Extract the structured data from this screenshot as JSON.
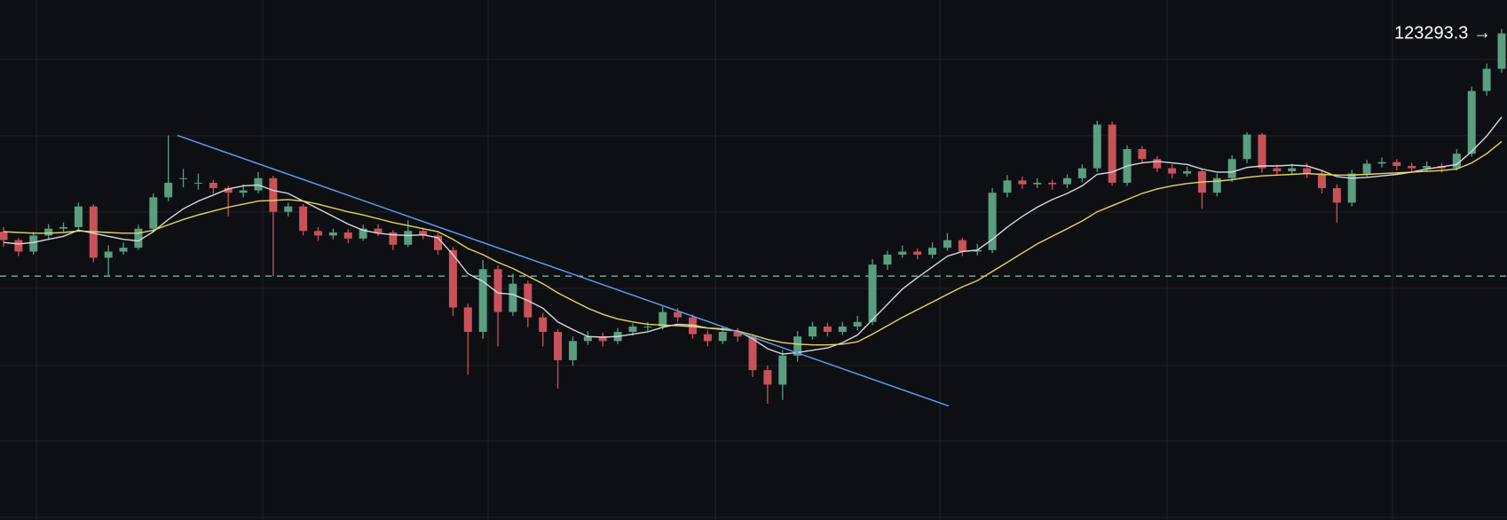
{
  "chart_data": {
    "type": "candlestick",
    "last_price_label": "123293.3 →",
    "up_color": "#5a9e82",
    "down_color": "#c9525a",
    "ylim": [
      116930,
      123730
    ],
    "open": [
      120700,
      120590,
      120440,
      120650,
      120740,
      120760,
      121030,
      120360,
      120440,
      120490,
      120740,
      121150,
      121400,
      121340,
      121340,
      121270,
      121210,
      121240,
      121400,
      120960,
      121030,
      120710,
      120650,
      120690,
      120610,
      120740,
      120690,
      120530,
      120710,
      120650,
      120460,
      119710,
      119390,
      120210,
      119650,
      120020,
      119580,
      119390,
      119020,
      119270,
      119330,
      119270,
      119390,
      119460,
      119460,
      119650,
      119580,
      119360,
      119270,
      119390,
      119330,
      118890,
      118700,
      119080,
      119330,
      119460,
      119390,
      119460,
      119520,
      120270,
      120400,
      120440,
      120400,
      120490,
      120590,
      120440,
      120460,
      121210,
      121370,
      121320,
      121340,
      121320,
      121400,
      121530,
      122100,
      121340,
      121780,
      121650,
      121530,
      121460,
      121490,
      121210,
      121400,
      121650,
      121970,
      121530,
      121490,
      121530,
      121460,
      121270,
      121080,
      121460,
      121590,
      121610,
      121560,
      121530,
      121560,
      121530,
      121720,
      122540,
      122830
    ],
    "high": [
      120760,
      120620,
      120700,
      120800,
      120820,
      121080,
      121060,
      120520,
      120560,
      120790,
      121200,
      121960,
      121520,
      121460,
      121380,
      121300,
      121320,
      121480,
      121430,
      121080,
      121060,
      120760,
      120740,
      120730,
      120790,
      120800,
      120720,
      120850,
      120750,
      120680,
      120500,
      119760,
      120330,
      120260,
      120150,
      120060,
      119640,
      119430,
      119330,
      119400,
      119380,
      119440,
      119500,
      119520,
      119720,
      119700,
      119620,
      119410,
      119450,
      119440,
      119360,
      118950,
      119150,
      119400,
      119520,
      119510,
      119520,
      119600,
      120340,
      120450,
      120520,
      120480,
      120560,
      120680,
      120620,
      120540,
      121270,
      121440,
      121420,
      121400,
      121380,
      121450,
      121580,
      122150,
      122140,
      121830,
      121820,
      121690,
      121580,
      121550,
      121530,
      121460,
      121700,
      122000,
      121990,
      121580,
      121590,
      121600,
      121500,
      121320,
      121510,
      121640,
      121670,
      121650,
      121600,
      121620,
      121600,
      121780,
      122600,
      122900,
      123350
    ],
    "low": [
      120500,
      120380,
      120400,
      120600,
      120700,
      120720,
      120300,
      120120,
      120400,
      120460,
      120700,
      121100,
      121280,
      121250,
      121200,
      120900,
      121150,
      121200,
      120120,
      120900,
      120650,
      120580,
      120600,
      120550,
      120580,
      120640,
      120460,
      120500,
      120600,
      120400,
      119600,
      118830,
      119300,
      119200,
      119600,
      119450,
      119200,
      118650,
      118950,
      119220,
      119200,
      119230,
      119340,
      119400,
      119420,
      119520,
      119300,
      119200,
      119230,
      119260,
      118800,
      118450,
      118500,
      119000,
      119290,
      119330,
      119350,
      119410,
      119480,
      120200,
      120360,
      120340,
      120350,
      120450,
      120380,
      120390,
      120420,
      121150,
      121260,
      121270,
      121250,
      121270,
      121350,
      121480,
      121300,
      121300,
      121600,
      121480,
      121400,
      121420,
      121000,
      121160,
      121350,
      121600,
      121470,
      121430,
      121450,
      121400,
      121200,
      120820,
      121030,
      121420,
      121540,
      121500,
      121470,
      121490,
      121470,
      121500,
      121680,
      122480,
      122780
    ],
    "close": [
      120590,
      120440,
      120650,
      120740,
      120760,
      121030,
      120360,
      120440,
      120490,
      120740,
      121150,
      121340,
      121400,
      121340,
      121270,
      121210,
      121240,
      121400,
      120960,
      121030,
      120710,
      120650,
      120690,
      120610,
      120740,
      120690,
      120530,
      120710,
      120650,
      120460,
      119710,
      119390,
      120210,
      119650,
      120020,
      119580,
      119390,
      119020,
      119270,
      119330,
      119270,
      119390,
      119460,
      119460,
      119650,
      119580,
      119360,
      119270,
      119390,
      119330,
      118890,
      118700,
      119080,
      119330,
      119460,
      119390,
      119460,
      119520,
      120270,
      120400,
      120440,
      120400,
      120490,
      120590,
      120440,
      120460,
      121210,
      121370,
      121320,
      121340,
      121320,
      121400,
      121530,
      122100,
      121340,
      121780,
      121650,
      121530,
      121460,
      121490,
      121210,
      121400,
      121650,
      121970,
      121530,
      121490,
      121530,
      121460,
      121270,
      121080,
      121460,
      121590,
      121610,
      121560,
      121530,
      121560,
      121530,
      121720,
      122540,
      122830,
      123293.3
    ],
    "overlays": [
      {
        "color": "#d9d9de",
        "values": [
          120560,
          120540,
          120560,
          120600,
          120640,
          120720,
          120680,
          120640,
          120600,
          120580,
          120700,
          120860,
          121000,
          121100,
          121180,
          121260,
          121300,
          121310,
          121240,
          121200,
          121100,
          121000,
          120900,
          120800,
          120720,
          120680,
          120660,
          120650,
          120660,
          120620,
          120400,
          120150,
          120050,
          119900,
          119880,
          119800,
          119700,
          119520,
          119420,
          119330,
          119320,
          119330,
          119360,
          119390,
          119450,
          119490,
          119480,
          119440,
          119430,
          119400,
          119300,
          119170,
          119100,
          119120,
          119150,
          119180,
          119250,
          119350,
          119550,
          119750,
          119950,
          120100,
          120240,
          120380,
          120440,
          120460,
          120600,
          120760,
          120900,
          121020,
          121120,
          121200,
          121300,
          121450,
          121480,
          121560,
          121600,
          121620,
          121600,
          121580,
          121520,
          121480,
          121480,
          121540,
          121560,
          121560,
          121570,
          121560,
          121500,
          121420,
          121400,
          121410,
          121430,
          121450,
          121480,
          121520,
          121550,
          121580,
          121750,
          121950,
          122200
        ]
      },
      {
        "color": "#e8d65a",
        "values": [
          120700,
          120690,
          120680,
          120680,
          120690,
          120710,
          120700,
          120690,
          120680,
          120680,
          120720,
          120790,
          120860,
          120920,
          120970,
          121020,
          121060,
          121100,
          121110,
          121120,
          121100,
          121060,
          121010,
          120960,
          120920,
          120870,
          120820,
          120780,
          120740,
          120700,
          120600,
          120480,
          120400,
          120300,
          120220,
          120120,
          120020,
          119900,
          119800,
          119700,
          119620,
          119560,
          119520,
          119490,
          119480,
          119470,
          119460,
          119440,
          119420,
          119400,
          119350,
          119290,
          119250,
          119230,
          119220,
          119220,
          119230,
          119260,
          119360,
          119470,
          119580,
          119680,
          119780,
          119880,
          119980,
          120060,
          120180,
          120300,
          120420,
          120540,
          120640,
          120740,
          120840,
          120960,
          121040,
          121120,
          121200,
          121260,
          121300,
          121330,
          121350,
          121360,
          121380,
          121410,
          121430,
          121440,
          121450,
          121460,
          121450,
          121440,
          121440,
          121450,
          121460,
          121470,
          121480,
          121490,
          121500,
          121520,
          121600,
          121720,
          121880
        ]
      }
    ],
    "trendline": {
      "x": [
        11.6,
        63.1
      ],
      "values": [
        121960,
        118420
      ],
      "color": "#5b9cf0"
    },
    "reference_line": {
      "value": 120120,
      "color": "#7fc8a9"
    }
  }
}
